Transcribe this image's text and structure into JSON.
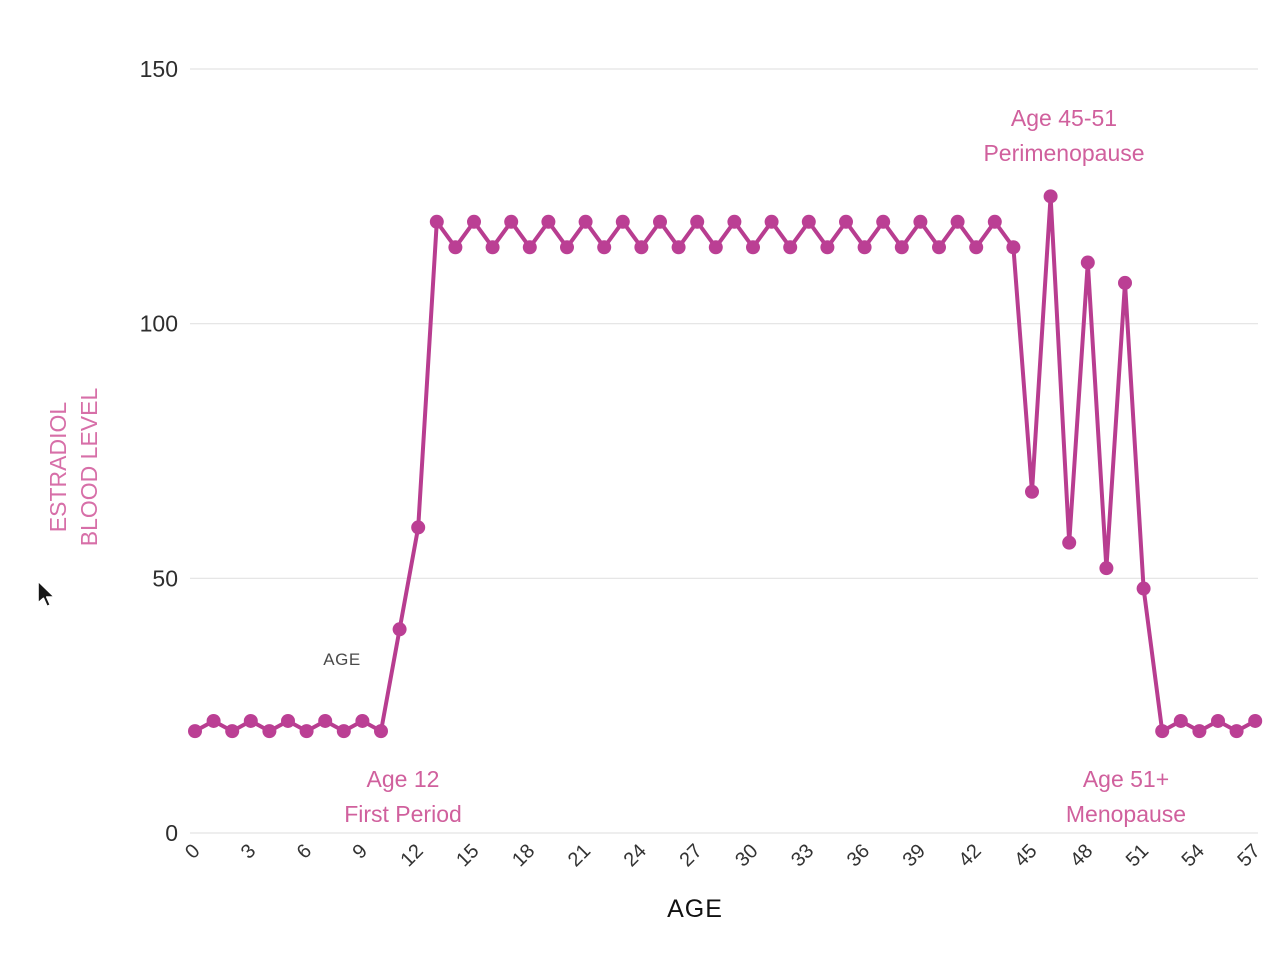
{
  "chart_data": {
    "type": "line",
    "title": "",
    "xlabel": "AGE",
    "ylabel": "ESTRADIOL BLOOD LEVEL",
    "ylabel_lines": {
      "line1": "ESTRADIOL",
      "line2": "BLOOD LEVEL"
    },
    "x": [
      0,
      1,
      2,
      3,
      4,
      5,
      6,
      7,
      8,
      9,
      10,
      11,
      12,
      13,
      14,
      15,
      16,
      17,
      18,
      19,
      20,
      21,
      22,
      23,
      24,
      25,
      26,
      27,
      28,
      29,
      30,
      31,
      32,
      33,
      34,
      35,
      36,
      37,
      38,
      39,
      40,
      41,
      42,
      43,
      44,
      45,
      46,
      47,
      48,
      49,
      50,
      51,
      52,
      53,
      54,
      55,
      56,
      57
    ],
    "values": [
      20,
      22,
      20,
      22,
      20,
      22,
      20,
      22,
      20,
      22,
      20,
      40,
      60,
      120,
      115,
      120,
      115,
      120,
      115,
      120,
      115,
      120,
      115,
      120,
      115,
      120,
      115,
      120,
      115,
      120,
      115,
      120,
      115,
      120,
      115,
      120,
      115,
      120,
      115,
      120,
      115,
      120,
      115,
      120,
      115,
      67,
      125,
      57,
      112,
      52,
      108,
      48,
      20,
      22,
      20,
      22,
      20,
      22
    ],
    "xticks": [
      0,
      3,
      6,
      9,
      12,
      15,
      18,
      21,
      24,
      27,
      30,
      33,
      36,
      39,
      42,
      45,
      48,
      51,
      54,
      57
    ],
    "yticks": [
      0,
      50,
      100,
      150
    ],
    "xlim": [
      0,
      57
    ],
    "ylim": [
      0,
      150
    ],
    "grid": "horizontal",
    "legend": "none",
    "line_color": "#b83d90",
    "point_color": "#bb3f94",
    "grid_color": "#e3e3e3",
    "axis_text_color": "#333333",
    "annotation_color": "#d0609d",
    "ylabel_color": "#d76fa8",
    "annotations": [
      {
        "line1": "Age 12",
        "line2": "First Period",
        "at_age": 12,
        "position": "below"
      },
      {
        "line1": "Age 45-51",
        "line2": "Perimenopause",
        "at_age": 48,
        "position": "above"
      },
      {
        "line1": "Age 51+",
        "line2": "Menopause",
        "at_age": 51,
        "position": "below"
      }
    ],
    "extra_label": {
      "text": "AGE"
    }
  }
}
